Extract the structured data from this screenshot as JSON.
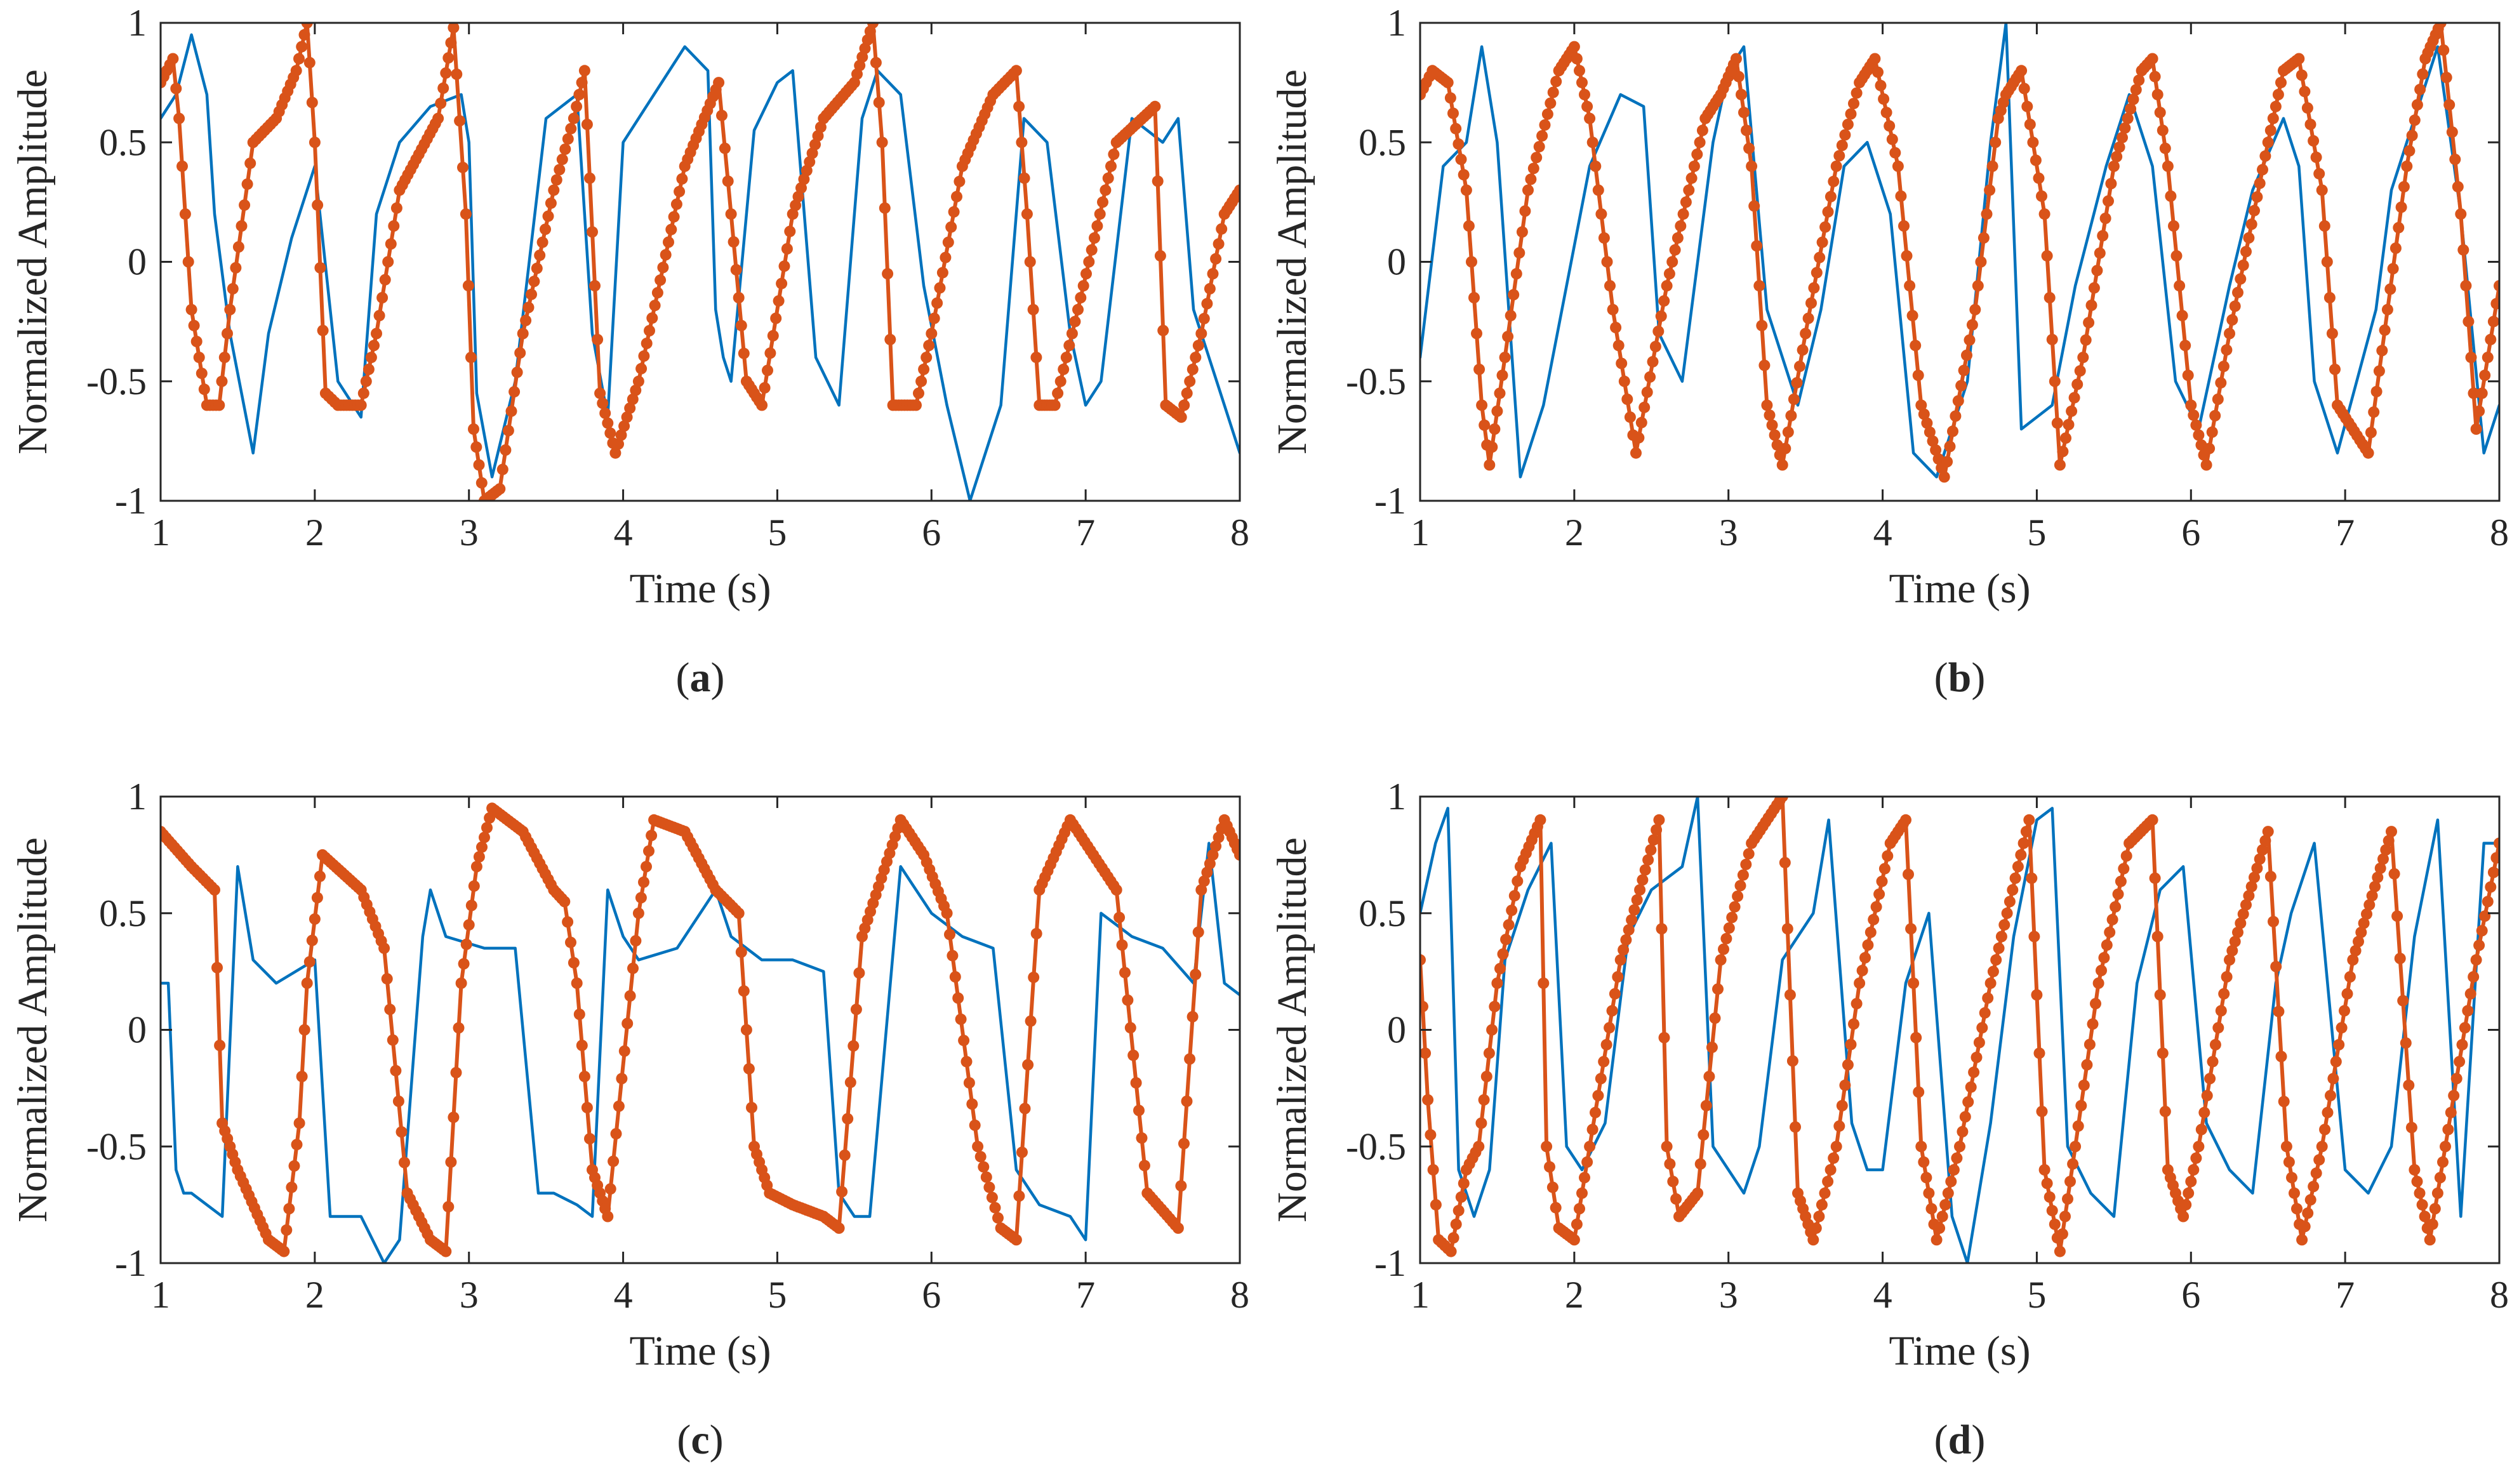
{
  "colors": {
    "reference_signal": "#0072BD",
    "estimated_signal": "#D95319",
    "axes": "#262626",
    "background": "#ffffff"
  },
  "chart_data": [
    {
      "panel": "a",
      "caption": {
        "open": "(",
        "letter": "a",
        "close": ")"
      },
      "type": "line",
      "xlabel": "Time (s)",
      "ylabel": "Normalized Amplitude",
      "xlim": [
        1,
        8
      ],
      "ylim": [
        -1,
        1
      ],
      "xticks": [
        1,
        2,
        3,
        4,
        5,
        6,
        7,
        8
      ],
      "xtick_labels": [
        "1",
        "2",
        "3",
        "4",
        "5",
        "6",
        "7",
        "8"
      ],
      "yticks": [
        -1,
        -0.5,
        0,
        0.5,
        1
      ],
      "ytick_labels": [
        "-1",
        "-0.5",
        "0",
        "0.5",
        "1"
      ],
      "series": [
        {
          "name": "blue",
          "style": "line",
          "color": "#0072BD",
          "x": [
            1.0,
            1.1,
            1.2,
            1.3,
            1.35,
            1.45,
            1.6,
            1.7,
            1.85,
            2.0,
            2.15,
            2.3,
            2.4,
            2.55,
            2.75,
            2.95,
            3.0,
            3.05,
            3.15,
            3.3,
            3.5,
            3.7,
            3.8,
            3.9,
            4.0,
            4.2,
            4.4,
            4.55,
            4.6,
            4.65,
            4.7,
            4.85,
            5.0,
            5.1,
            5.25,
            5.4,
            5.55,
            5.65,
            5.8,
            5.95,
            6.1,
            6.25,
            6.45,
            6.6,
            6.75,
            6.9,
            7.0,
            7.1,
            7.3,
            7.5,
            7.6,
            7.7,
            7.85,
            8.0
          ],
          "values": [
            0.6,
            0.7,
            0.95,
            0.7,
            0.2,
            -0.3,
            -0.8,
            -0.3,
            0.1,
            0.4,
            -0.5,
            -0.65,
            0.2,
            0.5,
            0.65,
            0.7,
            0.5,
            -0.55,
            -0.9,
            -0.5,
            0.6,
            0.7,
            -0.3,
            -0.65,
            0.5,
            0.7,
            0.9,
            0.8,
            -0.2,
            -0.4,
            -0.5,
            0.55,
            0.75,
            0.8,
            -0.4,
            -0.6,
            0.6,
            0.8,
            0.7,
            -0.1,
            -0.6,
            -1.0,
            -0.6,
            0.6,
            0.5,
            -0.3,
            -0.6,
            -0.5,
            0.6,
            0.5,
            0.6,
            -0.2,
            -0.5,
            -0.8
          ]
        },
        {
          "name": "orange",
          "style": "line-markers",
          "color": "#D95319",
          "x": [
            1.0,
            1.08,
            1.12,
            1.2,
            1.3,
            1.38,
            1.45,
            1.6,
            1.75,
            1.88,
            1.95,
            2.0,
            2.07,
            2.15,
            2.3,
            2.4,
            2.55,
            2.8,
            2.9,
            2.98,
            3.03,
            3.1,
            3.2,
            3.35,
            3.55,
            3.68,
            3.75,
            3.85,
            3.95,
            4.1,
            4.4,
            4.62,
            4.7,
            4.8,
            4.9,
            5.1,
            5.3,
            5.5,
            5.62,
            5.68,
            5.75,
            5.9,
            6.0,
            6.2,
            6.4,
            6.55,
            6.62,
            6.7,
            6.8,
            6.95,
            7.2,
            7.45,
            7.52,
            7.62,
            7.75,
            7.9,
            8.0
          ],
          "values": [
            0.75,
            0.85,
            0.6,
            -0.2,
            -0.6,
            -0.6,
            -0.2,
            0.5,
            0.6,
            0.8,
            1.0,
            0.5,
            -0.55,
            -0.6,
            -0.6,
            -0.3,
            0.3,
            0.6,
            0.98,
            0.2,
            -0.7,
            -1.0,
            -0.95,
            -0.3,
            0.3,
            0.6,
            0.8,
            -0.55,
            -0.8,
            -0.5,
            0.4,
            0.75,
            0.2,
            -0.5,
            -0.6,
            0.2,
            0.6,
            0.75,
            1.0,
            0.5,
            -0.6,
            -0.6,
            -0.3,
            0.4,
            0.7,
            0.8,
            0.2,
            -0.6,
            -0.6,
            -0.2,
            0.5,
            0.65,
            -0.6,
            -0.65,
            -0.3,
            0.2,
            0.3
          ]
        }
      ]
    },
    {
      "panel": "b",
      "caption": {
        "open": "(",
        "letter": "b",
        "close": ")"
      },
      "type": "line",
      "xlabel": "Time (s)",
      "ylabel": "Normalized Amplitude",
      "xlim": [
        1,
        8
      ],
      "ylim": [
        -1,
        1
      ],
      "xticks": [
        1,
        2,
        3,
        4,
        5,
        6,
        7,
        8
      ],
      "xtick_labels": [
        "1",
        "2",
        "3",
        "4",
        "5",
        "6",
        "7",
        "8"
      ],
      "yticks": [
        -1,
        -0.5,
        0,
        0.5,
        1
      ],
      "ytick_labels": [
        "-1",
        "-0.5",
        "0",
        "0.5",
        "1"
      ],
      "series": [
        {
          "name": "blue",
          "style": "line",
          "color": "#0072BD",
          "x": [
            1.0,
            1.15,
            1.3,
            1.4,
            1.5,
            1.65,
            1.8,
            1.95,
            2.1,
            2.3,
            2.45,
            2.55,
            2.7,
            2.9,
            3.0,
            3.1,
            3.25,
            3.45,
            3.6,
            3.75,
            3.9,
            4.05,
            4.2,
            4.35,
            4.55,
            4.7,
            4.8,
            4.9,
            5.1,
            5.25,
            5.45,
            5.6,
            5.75,
            5.9,
            6.05,
            6.25,
            6.4,
            6.6,
            6.7,
            6.8,
            6.95,
            7.2,
            7.3,
            7.45,
            7.6,
            7.75,
            7.9,
            8.0
          ],
          "values": [
            -0.4,
            0.4,
            0.5,
            0.9,
            0.5,
            -0.9,
            -0.6,
            -0.1,
            0.4,
            0.7,
            0.65,
            -0.3,
            -0.5,
            0.5,
            0.8,
            0.9,
            -0.2,
            -0.6,
            -0.2,
            0.4,
            0.5,
            0.2,
            -0.8,
            -0.9,
            -0.5,
            0.5,
            1.0,
            -0.7,
            -0.6,
            -0.1,
            0.4,
            0.7,
            0.4,
            -0.5,
            -0.7,
            -0.1,
            0.3,
            0.6,
            0.4,
            -0.5,
            -0.8,
            -0.2,
            0.3,
            0.6,
            0.9,
            0.2,
            -0.8,
            -0.6
          ]
        },
        {
          "name": "orange",
          "style": "line-markers",
          "color": "#D95319",
          "x": [
            1.0,
            1.08,
            1.18,
            1.3,
            1.4,
            1.45,
            1.55,
            1.7,
            1.9,
            2.0,
            2.1,
            2.25,
            2.4,
            2.6,
            2.85,
            2.95,
            3.05,
            3.15,
            3.25,
            3.35,
            3.5,
            3.7,
            3.85,
            3.95,
            4.1,
            4.25,
            4.4,
            4.6,
            4.75,
            4.8,
            4.9,
            5.05,
            5.15,
            5.3,
            5.5,
            5.68,
            5.75,
            5.85,
            6.0,
            6.1,
            6.25,
            6.5,
            6.6,
            6.7,
            6.85,
            6.95,
            7.15,
            7.4,
            7.52,
            7.62,
            7.75,
            7.85,
            8.0
          ],
          "values": [
            0.7,
            0.8,
            0.75,
            0.3,
            -0.6,
            -0.85,
            -0.4,
            0.3,
            0.8,
            0.9,
            0.6,
            -0.2,
            -0.8,
            -0.1,
            0.6,
            0.7,
            0.85,
            0.4,
            -0.6,
            -0.85,
            -0.3,
            0.4,
            0.75,
            0.85,
            0.4,
            -0.6,
            -0.9,
            -0.2,
            0.6,
            0.7,
            0.8,
            0.2,
            -0.85,
            -0.4,
            0.4,
            0.8,
            0.85,
            0.4,
            -0.6,
            -0.85,
            -0.3,
            0.5,
            0.8,
            0.85,
            0.3,
            -0.6,
            -0.8,
            0.4,
            0.85,
            1.0,
            0.2,
            -0.7,
            -0.1
          ]
        }
      ]
    },
    {
      "panel": "c",
      "caption": {
        "open": "(",
        "letter": "c",
        "close": ")"
      },
      "type": "line",
      "xlabel": "Time (s)",
      "ylabel": "Normalized Amplitude",
      "xlim": [
        1,
        8
      ],
      "ylim": [
        -1,
        1
      ],
      "xticks": [
        1,
        2,
        3,
        4,
        5,
        6,
        7,
        8
      ],
      "xtick_labels": [
        "1",
        "2",
        "3",
        "4",
        "5",
        "6",
        "7",
        "8"
      ],
      "yticks": [
        -1,
        -0.5,
        0,
        0.5,
        1
      ],
      "ytick_labels": [
        "-1",
        "-0.5",
        "0",
        "0.5",
        "1"
      ],
      "series": [
        {
          "name": "blue",
          "style": "line",
          "color": "#0072BD",
          "x": [
            1.0,
            1.05,
            1.1,
            1.15,
            1.2,
            1.4,
            1.5,
            1.6,
            1.75,
            2.0,
            2.1,
            2.3,
            2.45,
            2.55,
            2.7,
            2.75,
            2.85,
            3.1,
            3.3,
            3.45,
            3.55,
            3.7,
            3.8,
            3.9,
            4.0,
            4.1,
            4.35,
            4.6,
            4.7,
            4.8,
            4.9,
            5.1,
            5.3,
            5.4,
            5.5,
            5.6,
            5.8,
            6.0,
            6.2,
            6.4,
            6.55,
            6.7,
            6.9,
            7.0,
            7.1,
            7.3,
            7.5,
            7.7,
            7.8,
            7.9,
            8.0
          ],
          "values": [
            0.2,
            0.2,
            -0.6,
            -0.7,
            -0.7,
            -0.8,
            0.7,
            0.3,
            0.2,
            0.3,
            -0.8,
            -0.8,
            -1.0,
            -0.9,
            0.4,
            0.6,
            0.4,
            0.35,
            0.35,
            -0.7,
            -0.7,
            -0.75,
            -0.8,
            0.6,
            0.4,
            0.3,
            0.35,
            0.6,
            0.4,
            0.35,
            0.3,
            0.3,
            0.25,
            -0.7,
            -0.8,
            -0.8,
            0.7,
            0.5,
            0.4,
            0.35,
            -0.6,
            -0.75,
            -0.8,
            -0.9,
            0.5,
            0.4,
            0.35,
            0.2,
            0.8,
            0.2,
            0.15
          ]
        },
        {
          "name": "orange",
          "style": "line-markers",
          "color": "#D95319",
          "x": [
            1.0,
            1.2,
            1.35,
            1.4,
            1.5,
            1.7,
            1.8,
            1.9,
            1.95,
            2.05,
            2.3,
            2.45,
            2.6,
            2.75,
            2.85,
            2.95,
            3.05,
            3.15,
            3.35,
            3.55,
            3.62,
            3.7,
            3.8,
            3.9,
            4.1,
            4.2,
            4.4,
            4.6,
            4.75,
            4.85,
            4.95,
            5.1,
            5.3,
            5.4,
            5.55,
            5.8,
            5.95,
            6.1,
            6.3,
            6.45,
            6.55,
            6.7,
            6.9,
            7.05,
            7.2,
            7.4,
            7.6,
            7.75,
            7.9,
            8.0
          ],
          "values": [
            0.85,
            0.7,
            0.6,
            -0.4,
            -0.6,
            -0.9,
            -0.95,
            -0.4,
            0.2,
            0.75,
            0.6,
            0.35,
            -0.7,
            -0.9,
            -0.95,
            0.2,
            0.7,
            0.95,
            0.85,
            0.6,
            0.55,
            0.2,
            -0.6,
            -0.8,
            0.5,
            0.9,
            0.85,
            0.6,
            0.5,
            -0.5,
            -0.7,
            -0.75,
            -0.8,
            -0.85,
            0.4,
            0.9,
            0.75,
            0.5,
            -0.5,
            -0.85,
            -0.9,
            0.6,
            0.9,
            0.75,
            0.6,
            -0.7,
            -0.85,
            0.6,
            0.9,
            0.75
          ]
        }
      ]
    },
    {
      "panel": "d",
      "caption": {
        "open": "(",
        "letter": "d",
        "close": ")"
      },
      "type": "line",
      "xlabel": "Time (s)",
      "ylabel": "Normalized Amplitude",
      "xlim": [
        1,
        8
      ],
      "ylim": [
        -1,
        1
      ],
      "xticks": [
        1,
        2,
        3,
        4,
        5,
        6,
        7,
        8
      ],
      "xtick_labels": [
        "1",
        "2",
        "3",
        "4",
        "5",
        "6",
        "7",
        "8"
      ],
      "yticks": [
        -1,
        -0.5,
        0,
        0.5,
        1
      ],
      "ytick_labels": [
        "-1",
        "-0.5",
        "0",
        "0.5",
        "1"
      ],
      "series": [
        {
          "name": "blue",
          "style": "line",
          "color": "#0072BD",
          "x": [
            1.0,
            1.1,
            1.18,
            1.25,
            1.35,
            1.45,
            1.55,
            1.7,
            1.85,
            1.95,
            2.05,
            2.2,
            2.35,
            2.5,
            2.7,
            2.8,
            2.9,
            3.0,
            3.1,
            3.2,
            3.35,
            3.55,
            3.65,
            3.8,
            3.9,
            4.0,
            4.15,
            4.3,
            4.45,
            4.55,
            4.7,
            4.85,
            5.0,
            5.1,
            5.2,
            5.35,
            5.5,
            5.65,
            5.8,
            5.95,
            6.1,
            6.25,
            6.4,
            6.55,
            6.65,
            6.8,
            7.0,
            7.15,
            7.3,
            7.45,
            7.6,
            7.75,
            7.9,
            8.0
          ],
          "values": [
            0.5,
            0.8,
            0.95,
            -0.6,
            -0.8,
            -0.6,
            0.3,
            0.6,
            0.8,
            -0.5,
            -0.6,
            -0.4,
            0.4,
            0.6,
            0.7,
            1.0,
            -0.5,
            -0.6,
            -0.7,
            -0.5,
            0.3,
            0.5,
            0.9,
            -0.4,
            -0.6,
            -0.6,
            0.2,
            0.5,
            -0.8,
            -1.0,
            -0.4,
            0.4,
            0.9,
            0.95,
            -0.5,
            -0.7,
            -0.8,
            0.2,
            0.6,
            0.7,
            -0.4,
            -0.6,
            -0.7,
            0.2,
            0.5,
            0.8,
            -0.6,
            -0.7,
            -0.5,
            0.4,
            0.9,
            -0.8,
            0.8,
            0.8
          ]
        },
        {
          "name": "orange",
          "style": "line-markers",
          "color": "#D95319",
          "x": [
            1.0,
            1.05,
            1.12,
            1.2,
            1.3,
            1.38,
            1.5,
            1.65,
            1.78,
            1.82,
            1.9,
            2.0,
            2.1,
            2.3,
            2.55,
            2.6,
            2.68,
            2.8,
            2.95,
            3.15,
            3.35,
            3.45,
            3.55,
            3.7,
            3.85,
            4.05,
            4.15,
            4.25,
            4.35,
            4.5,
            4.7,
            4.95,
            5.05,
            5.15,
            5.25,
            5.4,
            5.6,
            5.75,
            5.85,
            5.95,
            6.05,
            6.25,
            6.5,
            6.62,
            6.72,
            6.85,
            7.05,
            7.3,
            7.45,
            7.55,
            7.65,
            7.85,
            8.0
          ],
          "values": [
            0.3,
            -0.3,
            -0.9,
            -0.95,
            -0.6,
            -0.5,
            0.2,
            0.7,
            0.9,
            -0.5,
            -0.85,
            -0.9,
            -0.5,
            0.3,
            0.9,
            -0.5,
            -0.8,
            -0.7,
            0.3,
            0.8,
            1.0,
            -0.7,
            -0.9,
            -0.5,
            0.2,
            0.8,
            0.9,
            -0.5,
            -0.9,
            -0.5,
            0.2,
            0.9,
            -0.6,
            -0.95,
            -0.5,
            0.2,
            0.8,
            0.9,
            -0.6,
            -0.8,
            -0.5,
            0.3,
            0.85,
            -0.5,
            -0.9,
            -0.5,
            0.3,
            0.85,
            -0.6,
            -0.9,
            -0.5,
            0.3,
            0.8
          ]
        }
      ]
    }
  ]
}
